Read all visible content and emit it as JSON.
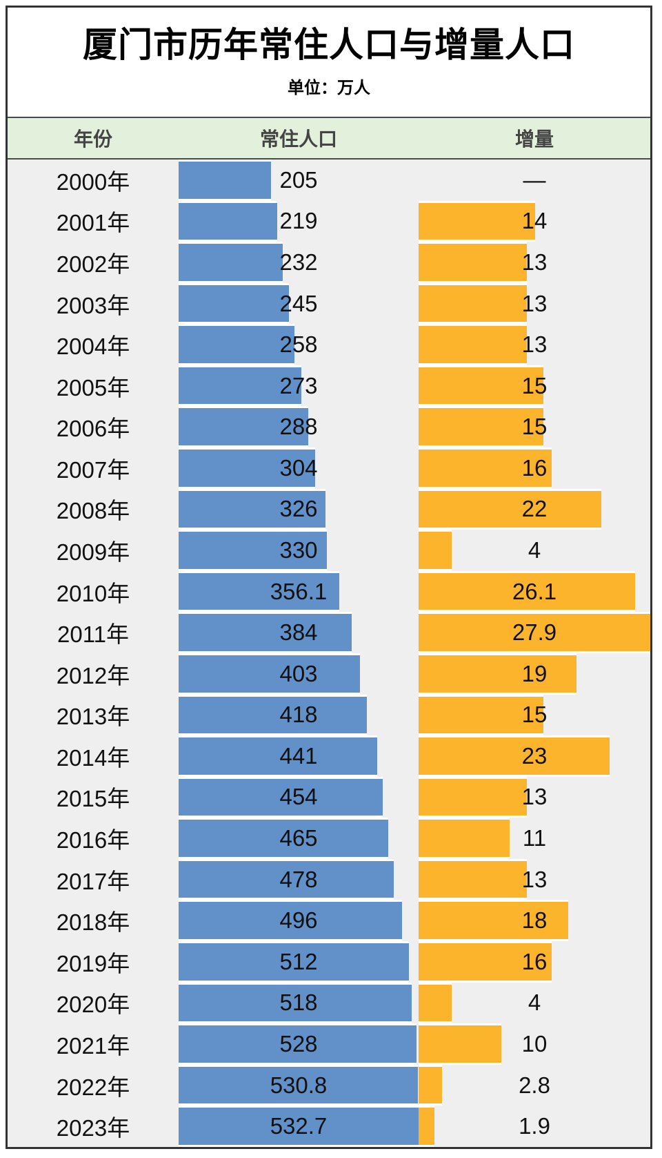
{
  "title": "厦门市历年常住人口与增量人口",
  "subtitle": "单位：万人",
  "colors": {
    "population_bar": "#6290C8",
    "increment_bar": "#FDB42D",
    "header_bg": "#E3F0DB",
    "body_bg": "#EFEFEF",
    "table_border": "#333333"
  },
  "scale": {
    "population_full": 533,
    "increment_full": 27.9
  },
  "table": {
    "headers": {
      "year": "年份",
      "population": "常住人口",
      "increment": "增量"
    },
    "rows": [
      {
        "year": "2000年",
        "population": "205",
        "increment": "—",
        "population_value": 205,
        "increment_value": null
      },
      {
        "year": "2001年",
        "population": "219",
        "increment": "14",
        "population_value": 219,
        "increment_value": 14
      },
      {
        "year": "2002年",
        "population": "232",
        "increment": "13",
        "population_value": 232,
        "increment_value": 13
      },
      {
        "year": "2003年",
        "population": "245",
        "increment": "13",
        "population_value": 245,
        "increment_value": 13
      },
      {
        "year": "2004年",
        "population": "258",
        "increment": "13",
        "population_value": 258,
        "increment_value": 13
      },
      {
        "year": "2005年",
        "population": "273",
        "increment": "15",
        "population_value": 273,
        "increment_value": 15
      },
      {
        "year": "2006年",
        "population": "288",
        "increment": "15",
        "population_value": 288,
        "increment_value": 15
      },
      {
        "year": "2007年",
        "population": "304",
        "increment": "16",
        "population_value": 304,
        "increment_value": 16
      },
      {
        "year": "2008年",
        "population": "326",
        "increment": "22",
        "population_value": 326,
        "increment_value": 22
      },
      {
        "year": "2009年",
        "population": "330",
        "increment": "4",
        "population_value": 330,
        "increment_value": 4
      },
      {
        "year": "2010年",
        "population": "356.1",
        "increment": "26.1",
        "population_value": 356.1,
        "increment_value": 26.1
      },
      {
        "year": "2011年",
        "population": "384",
        "increment": "27.9",
        "population_value": 384,
        "increment_value": 27.9
      },
      {
        "year": "2012年",
        "population": "403",
        "increment": "19",
        "population_value": 403,
        "increment_value": 19
      },
      {
        "year": "2013年",
        "population": "418",
        "increment": "15",
        "population_value": 418,
        "increment_value": 15
      },
      {
        "year": "2014年",
        "population": "441",
        "increment": "23",
        "population_value": 441,
        "increment_value": 23
      },
      {
        "year": "2015年",
        "population": "454",
        "increment": "13",
        "population_value": 454,
        "increment_value": 13
      },
      {
        "year": "2016年",
        "population": "465",
        "increment": "11",
        "population_value": 465,
        "increment_value": 11
      },
      {
        "year": "2017年",
        "population": "478",
        "increment": "13",
        "population_value": 478,
        "increment_value": 13
      },
      {
        "year": "2018年",
        "population": "496",
        "increment": "18",
        "population_value": 496,
        "increment_value": 18
      },
      {
        "year": "2019年",
        "population": "512",
        "increment": "16",
        "population_value": 512,
        "increment_value": 16
      },
      {
        "year": "2020年",
        "population": "518",
        "increment": "4",
        "population_value": 518,
        "increment_value": 4
      },
      {
        "year": "2021年",
        "population": "528",
        "increment": "10",
        "population_value": 528,
        "increment_value": 10
      },
      {
        "year": "2022年",
        "population": "530.8",
        "increment": "2.8",
        "population_value": 530.8,
        "increment_value": 2.8
      },
      {
        "year": "2023年",
        "population": "532.7",
        "increment": "1.9",
        "population_value": 532.7,
        "increment_value": 1.9
      }
    ]
  },
  "chart_data": {
    "type": "bar",
    "orientation": "horizontal",
    "title": "厦门市历年常住人口与增量人口",
    "unit_label": "单位：万人",
    "categories": [
      "2000年",
      "2001年",
      "2002年",
      "2003年",
      "2004年",
      "2005年",
      "2006年",
      "2007年",
      "2008年",
      "2009年",
      "2010年",
      "2011年",
      "2012年",
      "2013年",
      "2014年",
      "2015年",
      "2016年",
      "2017年",
      "2018年",
      "2019年",
      "2020年",
      "2021年",
      "2022年",
      "2023年"
    ],
    "series": [
      {
        "name": "常住人口",
        "color": "#6290C8",
        "xlim": [
          0,
          533
        ],
        "values": [
          205,
          219,
          232,
          245,
          258,
          273,
          288,
          304,
          326,
          330,
          356.1,
          384,
          403,
          418,
          441,
          454,
          465,
          478,
          496,
          512,
          518,
          528,
          530.8,
          532.7
        ]
      },
      {
        "name": "增量",
        "color": "#FDB42D",
        "xlim": [
          0,
          27.9
        ],
        "values": [
          null,
          14,
          13,
          13,
          13,
          15,
          15,
          16,
          22,
          4,
          26.1,
          27.9,
          19,
          15,
          23,
          13,
          11,
          13,
          18,
          16,
          4,
          10,
          2.8,
          1.9
        ]
      }
    ],
    "grid": false,
    "legend": false
  }
}
